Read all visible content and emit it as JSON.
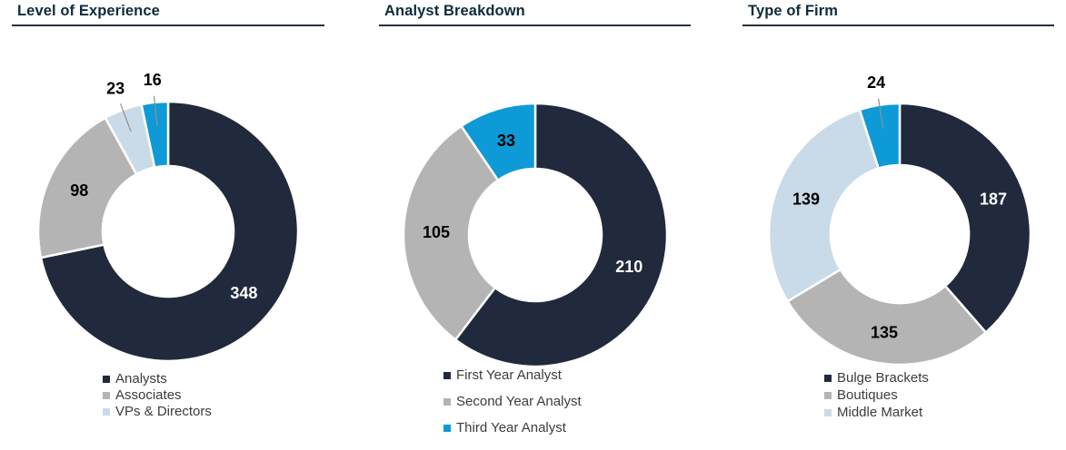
{
  "styles": {
    "background": "#FFFFFF",
    "title_color": "#0F2B3C",
    "rule_color": "#26313E",
    "legend_text_color": "#3C3C3C",
    "leader_line_color": "#909090",
    "slice_gap_color": "#FFFFFF"
  },
  "chart_data": [
    {
      "type": "pie",
      "subtype": "donut",
      "title": "Level of Experience",
      "legend_position": "bottom",
      "slices": [
        {
          "label": "Analysts",
          "value": 348,
          "color": "#212A3C",
          "value_label": "348",
          "value_label_placement": "inside",
          "value_label_color": "#FFFFFF"
        },
        {
          "label": "Associates",
          "value": 98,
          "color": "#B4B4B4",
          "value_label": "98",
          "value_label_placement": "inside",
          "value_label_color": "#000000"
        },
        {
          "label": "VPs & Directors",
          "value": 23,
          "color": "#C9DBE9",
          "value_label": "23",
          "value_label_placement": "outside",
          "value_label_color": "#000000"
        },
        {
          "label": "",
          "value": 16,
          "color": "#0E9AD6",
          "value_label": "16",
          "value_label_placement": "outside",
          "value_label_color": "#000000"
        }
      ],
      "legend": [
        {
          "label": "Analysts",
          "color": "#212A3C"
        },
        {
          "label": "Associates",
          "color": "#B4B4B4"
        },
        {
          "label": "VPs & Directors",
          "color": "#C9DBE9"
        }
      ]
    },
    {
      "type": "pie",
      "subtype": "donut",
      "title": "Analyst Breakdown",
      "legend_position": "bottom",
      "slices": [
        {
          "label": "First Year Analyst",
          "value": 210,
          "color": "#212A3C",
          "value_label": "210",
          "value_label_placement": "inside",
          "value_label_color": "#FFFFFF"
        },
        {
          "label": "Second Year Analyst",
          "value": 105,
          "color": "#B4B4B4",
          "value_label": "105",
          "value_label_placement": "inside",
          "value_label_color": "#000000"
        },
        {
          "label": "Third Year Analyst",
          "value": 33,
          "color": "#0E9AD6",
          "value_label": "33",
          "value_label_placement": "inside",
          "value_label_color": "#000000"
        }
      ],
      "legend": [
        {
          "label": "First Year Analyst",
          "color": "#212A3C"
        },
        {
          "label": "Second Year Analyst",
          "color": "#B4B4B4"
        },
        {
          "label": "Third Year Analyst",
          "color": "#0E9AD6"
        }
      ]
    },
    {
      "type": "pie",
      "subtype": "donut",
      "title": "Type of Firm",
      "legend_position": "bottom",
      "slices": [
        {
          "label": "Bulge Brackets",
          "value": 187,
          "color": "#212A3C",
          "value_label": "187",
          "value_label_placement": "inside",
          "value_label_color": "#FFFFFF"
        },
        {
          "label": "Boutiques",
          "value": 135,
          "color": "#B4B4B4",
          "value_label": "135",
          "value_label_placement": "inside",
          "value_label_color": "#000000"
        },
        {
          "label": "Middle Market",
          "value": 139,
          "color": "#C9DBE9",
          "value_label": "139",
          "value_label_placement": "inside",
          "value_label_color": "#000000"
        },
        {
          "label": "",
          "value": 24,
          "color": "#0E9AD6",
          "value_label": "24",
          "value_label_placement": "outside",
          "value_label_color": "#000000"
        }
      ],
      "legend": [
        {
          "label": "Bulge Brackets",
          "color": "#212A3C"
        },
        {
          "label": "Boutiques",
          "color": "#B4B4B4"
        },
        {
          "label": "Middle Market",
          "color": "#C9DBE9"
        }
      ]
    }
  ]
}
